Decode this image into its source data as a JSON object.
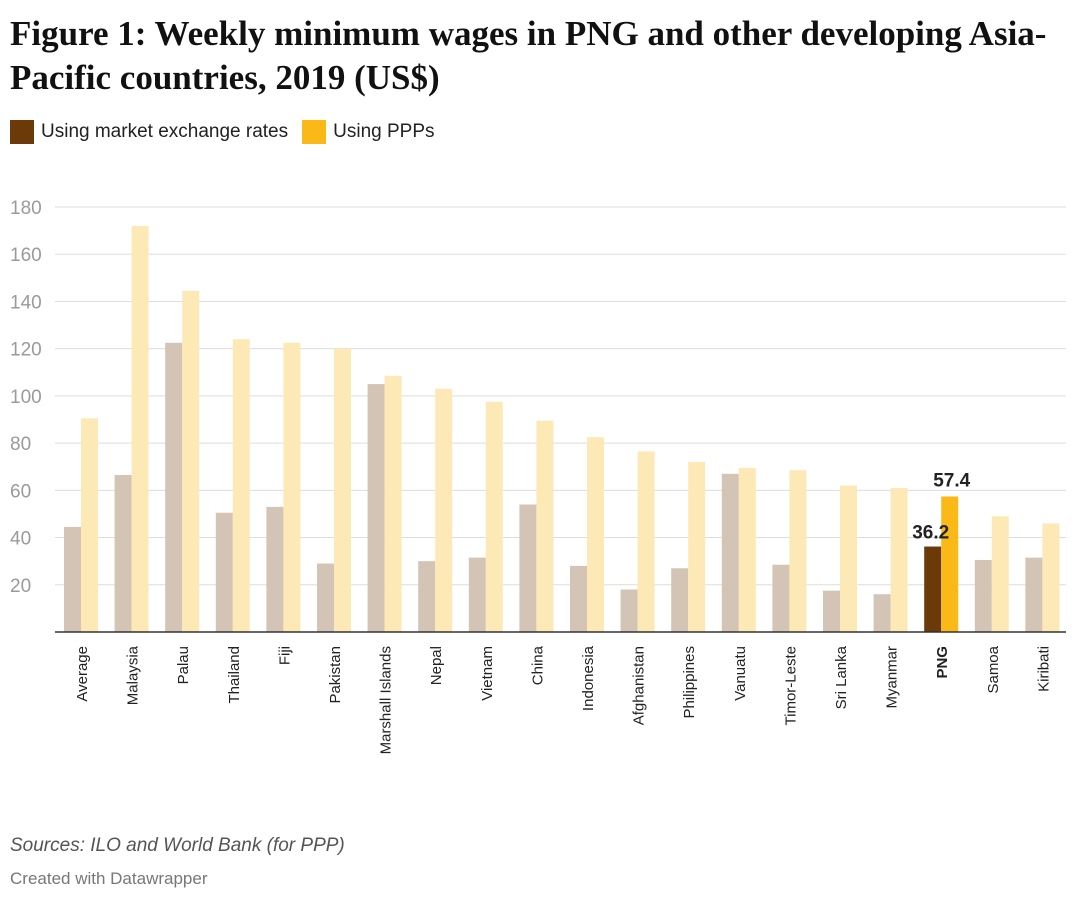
{
  "title": "Figure 1: Weekly minimum wages in PNG and other developing Asia-Pacific countries, 2019 (US$)",
  "legend": {
    "series1": "Using market exchange rates",
    "series2": "Using PPPs"
  },
  "colors": {
    "series1": "#6b3a08",
    "series1_muted": "#d3c4b5",
    "series2": "#fbb917",
    "series2_muted": "#fde9b6",
    "grid": "#dddddd",
    "axis": "#333333",
    "tick": "#9a9a9a"
  },
  "chart_data": {
    "type": "bar",
    "categories": [
      "Average",
      "Malaysia",
      "Palau",
      "Thailand",
      "Fiji",
      "Pakistan",
      "Marshall Islands",
      "Nepal",
      "Vietnam",
      "China",
      "Indonesia",
      "Afghanistan",
      "Philippines",
      "Vanuatu",
      "Timor-Leste",
      "Sri Lanka",
      "Myanmar",
      "PNG",
      "Samoa",
      "Kiribati"
    ],
    "series": [
      {
        "name": "Using market exchange rates",
        "values": [
          44.5,
          66.5,
          122.5,
          50.5,
          53,
          29,
          105,
          30,
          31.5,
          54,
          28,
          18,
          27,
          67,
          28.5,
          17.5,
          16,
          36.2,
          30.5,
          31.5
        ]
      },
      {
        "name": "Using PPPs",
        "values": [
          90.5,
          172,
          144.5,
          124,
          122.5,
          120,
          108.5,
          103,
          97.5,
          89.5,
          82.5,
          76.5,
          72,
          69.5,
          68.5,
          62,
          61,
          57.4,
          49,
          46
        ]
      }
    ],
    "highlight": "PNG",
    "data_labels": {
      "PNG_series1": "36.2",
      "PNG_series2": "57.4"
    },
    "yticks": [
      20,
      40,
      60,
      80,
      100,
      120,
      140,
      160,
      180
    ],
    "ylim": [
      0,
      180
    ],
    "grid": true,
    "legend_position": "top-left"
  },
  "footer": {
    "source": "Sources: ILO and World Bank (for PPP)",
    "credit": "Created with Datawrapper"
  }
}
